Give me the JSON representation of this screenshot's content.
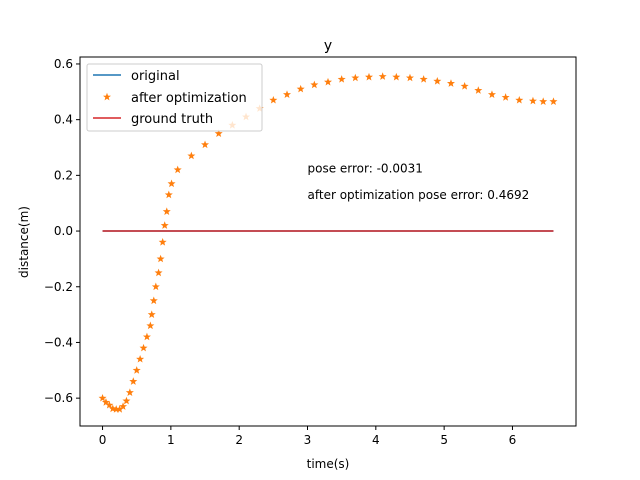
{
  "chart_data": {
    "type": "line",
    "title": "y",
    "xlabel": "time(s)",
    "ylabel": "distance(m)",
    "xlim": [
      -0.33,
      6.93
    ],
    "ylim": [
      -0.7,
      0.625
    ],
    "xticks": [
      0,
      1,
      2,
      3,
      4,
      5,
      6
    ],
    "xtick_labels": [
      "0",
      "1",
      "2",
      "3",
      "4",
      "5",
      "6"
    ],
    "yticks": [
      -0.6,
      -0.4,
      -0.2,
      0.0,
      0.2,
      0.4,
      0.6
    ],
    "ytick_labels": [
      "−0.6",
      "−0.4",
      "−0.2",
      "0.0",
      "0.2",
      "0.4",
      "0.6"
    ],
    "grid": false,
    "legend_position": "top-left",
    "series": [
      {
        "name": "original",
        "style": "line",
        "color": "#1f77b4",
        "x": [
          0,
          6.6
        ],
        "y": [
          0,
          0
        ]
      },
      {
        "name": "after optimization",
        "style": "star-markers",
        "color": "#ff7f0e",
        "x": [
          0.0,
          0.05,
          0.1,
          0.15,
          0.2,
          0.25,
          0.3,
          0.35,
          0.4,
          0.45,
          0.5,
          0.55,
          0.6,
          0.65,
          0.7,
          0.72,
          0.75,
          0.78,
          0.82,
          0.85,
          0.88,
          0.91,
          0.94,
          0.97,
          1.01,
          1.1,
          1.3,
          1.5,
          1.7,
          1.9,
          2.1,
          2.3,
          2.5,
          2.7,
          2.9,
          3.1,
          3.3,
          3.5,
          3.7,
          3.9,
          4.1,
          4.3,
          4.5,
          4.7,
          4.9,
          5.1,
          5.3,
          5.5,
          5.7,
          5.9,
          6.1,
          6.3,
          6.45,
          6.6
        ],
        "y": [
          -0.6,
          -0.615,
          -0.625,
          -0.638,
          -0.64,
          -0.64,
          -0.63,
          -0.61,
          -0.58,
          -0.54,
          -0.5,
          -0.46,
          -0.42,
          -0.38,
          -0.34,
          -0.3,
          -0.25,
          -0.2,
          -0.15,
          -0.1,
          -0.04,
          0.02,
          0.07,
          0.13,
          0.17,
          0.22,
          0.27,
          0.31,
          0.35,
          0.38,
          0.41,
          0.44,
          0.47,
          0.49,
          0.51,
          0.525,
          0.535,
          0.545,
          0.55,
          0.553,
          0.555,
          0.553,
          0.55,
          0.545,
          0.538,
          0.53,
          0.52,
          0.505,
          0.49,
          0.48,
          0.47,
          0.467,
          0.465,
          0.465
        ]
      },
      {
        "name": "ground truth",
        "style": "line",
        "color": "#d62728",
        "x": [
          0,
          6.6
        ],
        "y": [
          0,
          0
        ]
      }
    ],
    "annotations": [
      {
        "text": "pose error: -0.0031",
        "x": 3.0,
        "y": 0.21
      },
      {
        "text": "after optimization pose error: 0.4692",
        "x": 3.0,
        "y": 0.115
      }
    ]
  }
}
